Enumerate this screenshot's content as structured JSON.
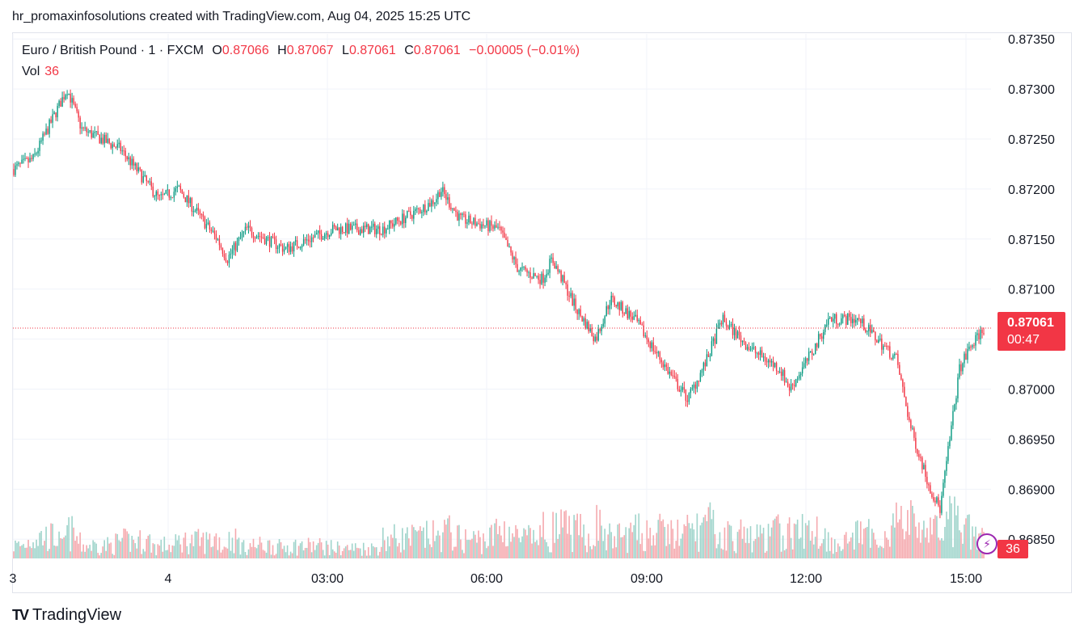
{
  "header": {
    "attribution": "hr_promaxinfosolutions created with TradingView.com, Aug 04, 2025 15:25 UTC"
  },
  "legend": {
    "symbol": "Euro / British Pound · 1 · FXCM",
    "open_label": "O",
    "open": "0.87066",
    "high_label": "H",
    "high": "0.87067",
    "low_label": "L",
    "low": "0.87061",
    "close_label": "C",
    "close": "0.87061",
    "change": "−0.00005 (−0.01%)",
    "vol_label": "Vol",
    "vol_value": "36"
  },
  "price_tag": {
    "price": "0.87061",
    "countdown": "00:47"
  },
  "vol_tag": "36",
  "footer": {
    "brand": "TradingView"
  },
  "colors": {
    "up": "#089981",
    "down": "#f23645",
    "vol_up": "#9fd4cb",
    "vol_down": "#f5a9ae",
    "grid": "#f0f3fa"
  },
  "chart_data": {
    "type": "candlestick",
    "title": "Euro / British Pound · 1 · FXCM",
    "y_ticks": [
      "0.87350",
      "0.87300",
      "0.87250",
      "0.87200",
      "0.87150",
      "0.87100",
      "0.87050",
      "0.87000",
      "0.86950",
      "0.86900",
      "0.86850"
    ],
    "ylim": [
      0.8683,
      0.87355
    ],
    "x_ticks": [
      "3",
      "4",
      "03:00",
      "06:00",
      "09:00",
      "12:00",
      "15:00"
    ],
    "last_price": 0.87061,
    "price_path": [
      [
        0.0,
        0.8722
      ],
      [
        0.02,
        0.8723
      ],
      [
        0.045,
        0.8728
      ],
      [
        0.055,
        0.873
      ],
      [
        0.07,
        0.8726
      ],
      [
        0.11,
        0.8724
      ],
      [
        0.15,
        0.8719
      ],
      [
        0.17,
        0.872
      ],
      [
        0.21,
        0.8715
      ],
      [
        0.22,
        0.8713
      ],
      [
        0.24,
        0.8716
      ],
      [
        0.28,
        0.8714
      ],
      [
        0.33,
        0.8716
      ],
      [
        0.38,
        0.8716
      ],
      [
        0.42,
        0.8718
      ],
      [
        0.435,
        0.8719
      ],
      [
        0.44,
        0.872
      ],
      [
        0.46,
        0.8717
      ],
      [
        0.5,
        0.8716
      ],
      [
        0.52,
        0.8712
      ],
      [
        0.545,
        0.8711
      ],
      [
        0.555,
        0.8713
      ],
      [
        0.58,
        0.8708
      ],
      [
        0.6,
        0.8705
      ],
      [
        0.615,
        0.8709
      ],
      [
        0.64,
        0.8707
      ],
      [
        0.66,
        0.8704
      ],
      [
        0.68,
        0.8701
      ],
      [
        0.695,
        0.8699
      ],
      [
        0.715,
        0.8703
      ],
      [
        0.73,
        0.8707
      ],
      [
        0.76,
        0.8704
      ],
      [
        0.79,
        0.8702
      ],
      [
        0.8,
        0.87
      ],
      [
        0.825,
        0.8704
      ],
      [
        0.84,
        0.8707
      ],
      [
        0.87,
        0.8707
      ],
      [
        0.89,
        0.8705
      ],
      [
        0.91,
        0.8703
      ],
      [
        0.925,
        0.8696
      ],
      [
        0.945,
        0.869
      ],
      [
        0.955,
        0.8688
      ],
      [
        0.965,
        0.8695
      ],
      [
        0.975,
        0.8702
      ],
      [
        0.985,
        0.8704
      ],
      [
        1.0,
        0.87061
      ]
    ],
    "volume_ylim": [
      0,
      120
    ]
  }
}
